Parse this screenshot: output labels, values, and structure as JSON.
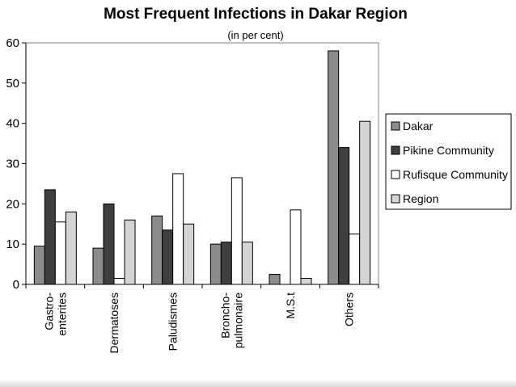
{
  "chart_data": {
    "type": "bar",
    "title": "Most Frequent Infections in Dakar Region",
    "subtitle": "(in per cent)",
    "categories": [
      [
        "Gastro-",
        "enterites"
      ],
      [
        "Dermatoses"
      ],
      [
        "Paludismes"
      ],
      [
        "Broncho-",
        "pulmonaire"
      ],
      [
        "M.S.t"
      ],
      [
        "Others"
      ]
    ],
    "series": [
      {
        "name": "Dakar",
        "color": "#8c8c8c",
        "values": [
          9.5,
          9,
          17,
          10,
          2.5,
          58
        ]
      },
      {
        "name": "Pikine Community",
        "color": "#3f3f3f",
        "values": [
          23.5,
          20,
          13.5,
          10.5,
          0,
          34
        ]
      },
      {
        "name": "Rufisque Community",
        "color": "#ffffff",
        "values": [
          15.5,
          1.5,
          27.5,
          26.5,
          18.5,
          12.5
        ]
      },
      {
        "name": "Region",
        "color": "#d4d4d4",
        "values": [
          18,
          16,
          15,
          10.5,
          1.5,
          40.5
        ]
      }
    ],
    "ylim": [
      0,
      60
    ],
    "yticks": [
      0,
      10,
      20,
      30,
      40,
      50,
      60
    ],
    "legend_position": "right",
    "grid": false
  }
}
